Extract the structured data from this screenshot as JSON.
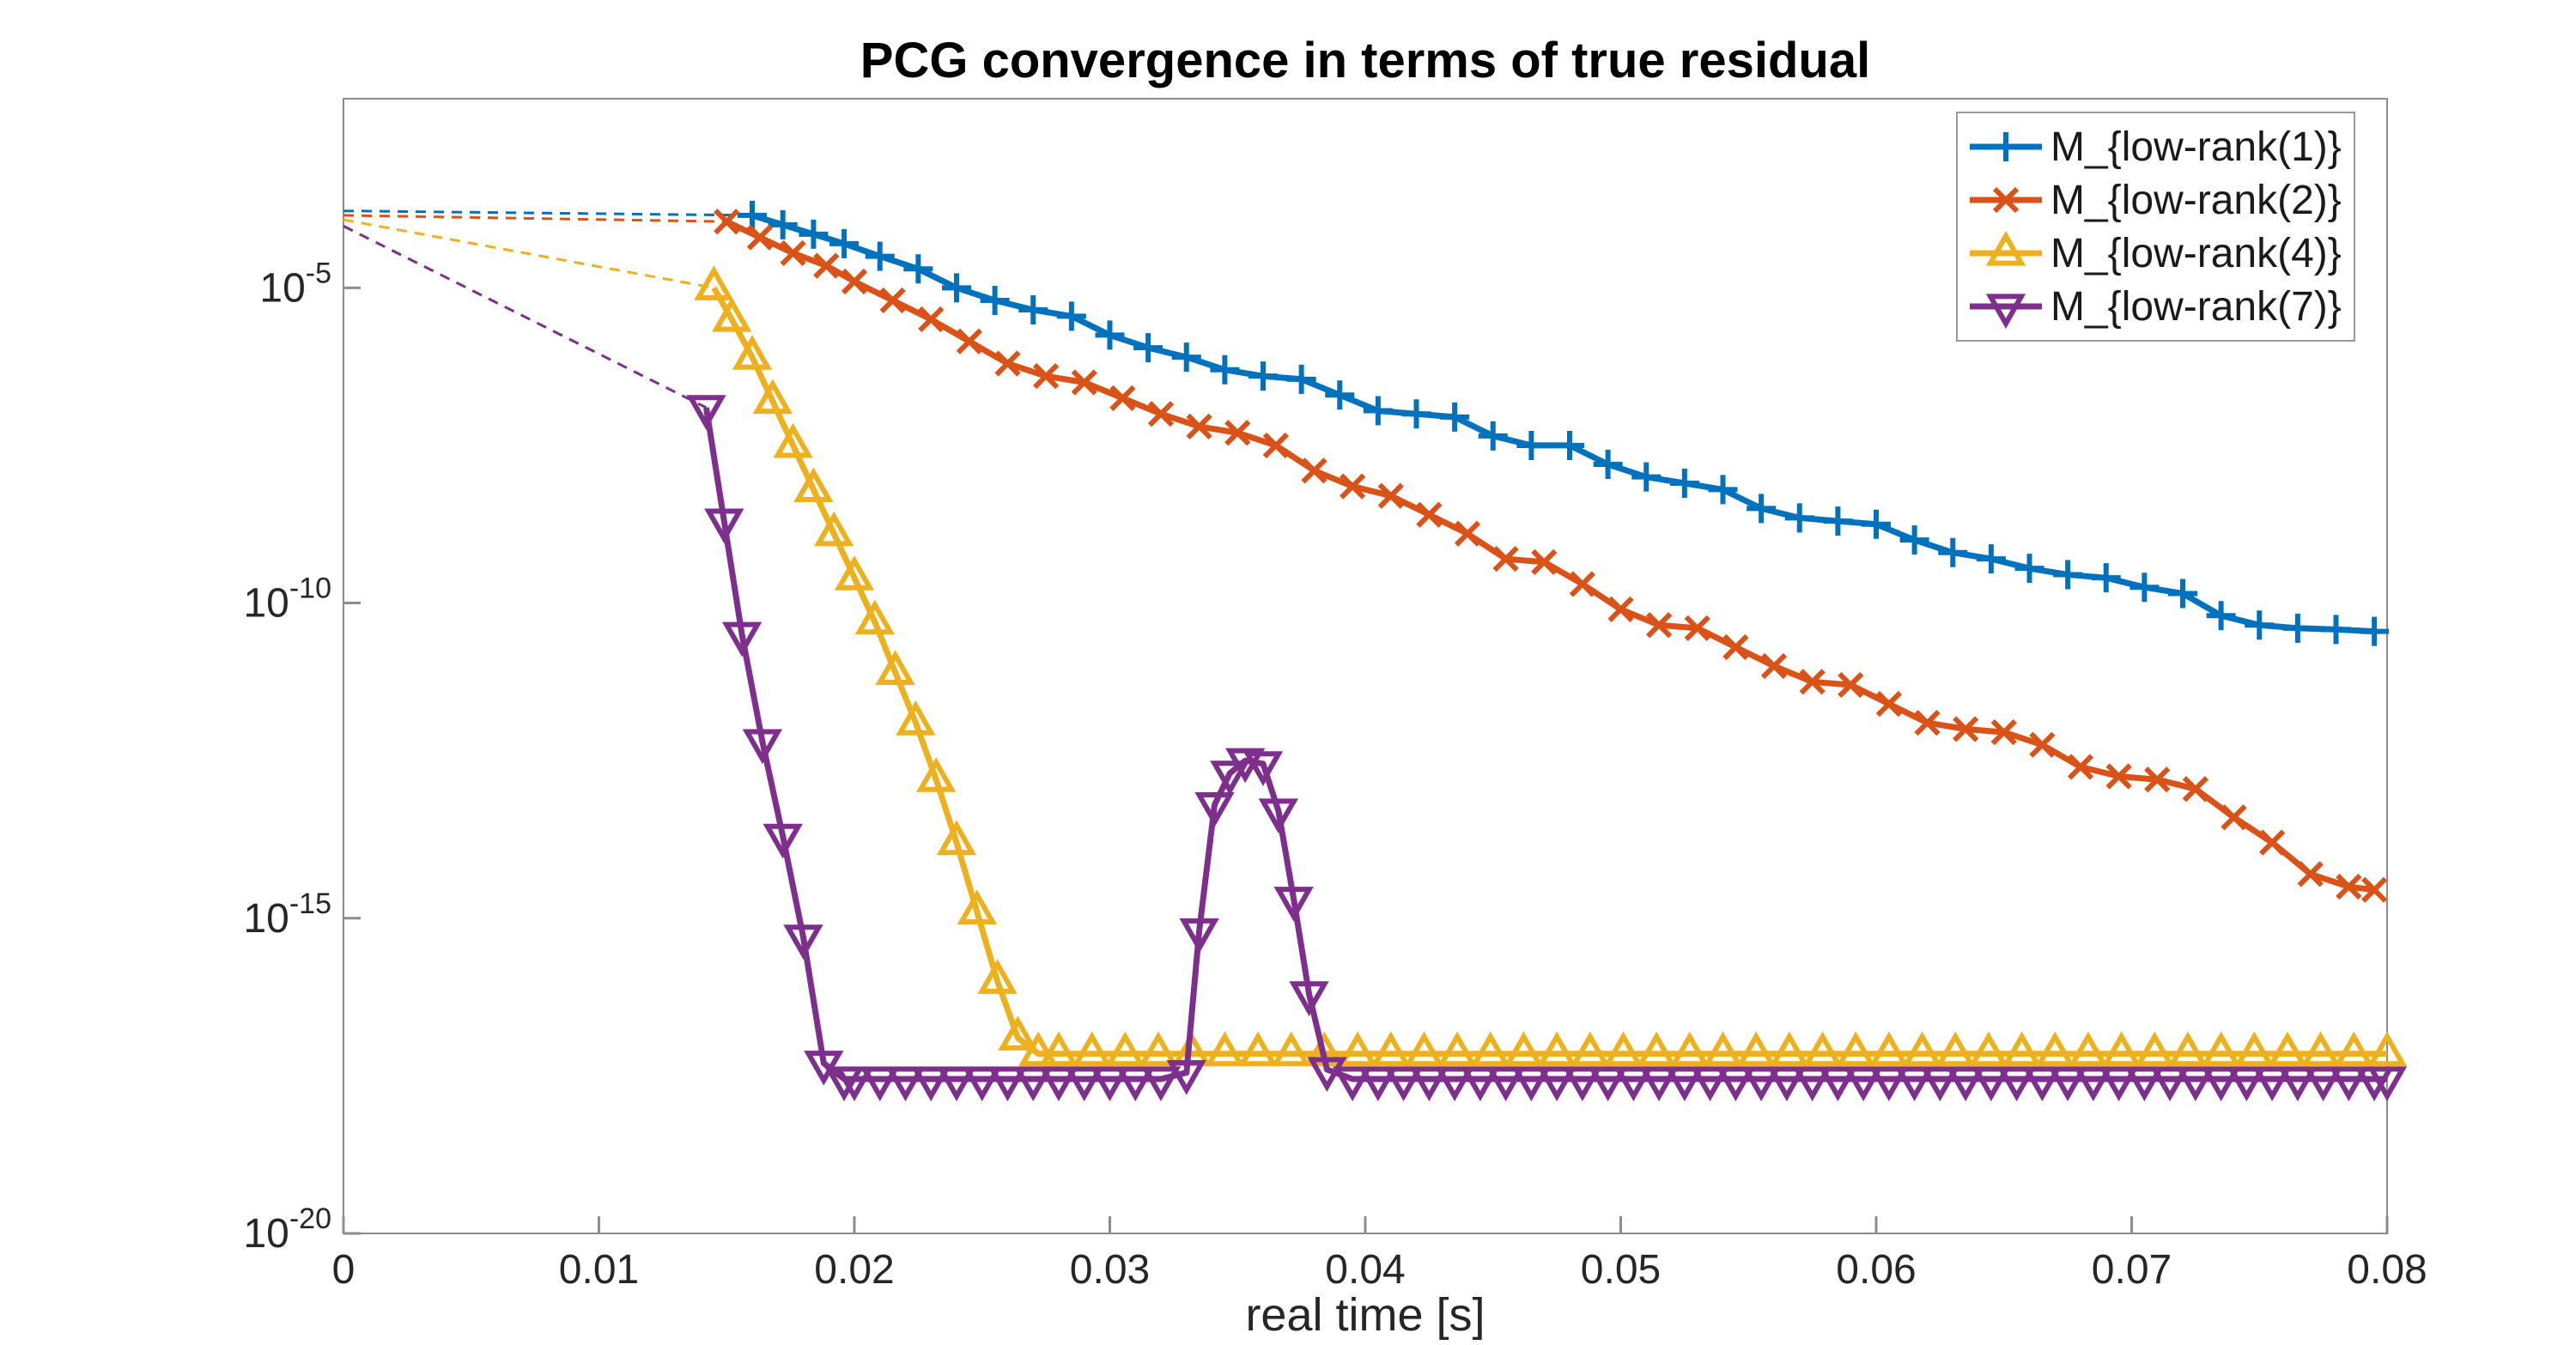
{
  "chart_data": {
    "type": "line",
    "title": "PCG convergence in terms of true residual",
    "xlabel": "real time [s]",
    "ylabel": "",
    "legend_position": "top-right",
    "grid": false,
    "x_axis": {
      "min": 0,
      "max": 0.08,
      "ticks": [
        {
          "v": 0,
          "label": "0"
        },
        {
          "v": 0.01,
          "label": "0.01"
        },
        {
          "v": 0.02,
          "label": "0.02"
        },
        {
          "v": 0.03,
          "label": "0.03"
        },
        {
          "v": 0.04,
          "label": "0.04"
        },
        {
          "v": 0.05,
          "label": "0.05"
        },
        {
          "v": 0.06,
          "label": "0.06"
        },
        {
          "v": 0.07,
          "label": "0.07"
        },
        {
          "v": 0.08,
          "label": "0.08"
        }
      ]
    },
    "y_axis": {
      "scale": "log10",
      "top_exp": -2,
      "bottom_exp": -20,
      "tick_exponents": [
        -5,
        -10,
        -15,
        -20
      ],
      "tick_label_base": "10"
    },
    "series": [
      {
        "name": "M_{low-rank(1)}",
        "color": "#0072BD",
        "marker": "plus",
        "dashed_lead": [
          [
            0,
            -3.78
          ],
          [
            0.016,
            -3.85
          ]
        ],
        "points": [
          [
            0.016,
            -3.85
          ],
          [
            0.0172,
            -4.0
          ],
          [
            0.0184,
            -4.15
          ],
          [
            0.0196,
            -4.3
          ],
          [
            0.021,
            -4.5
          ],
          [
            0.0225,
            -4.7
          ],
          [
            0.024,
            -5.0
          ],
          [
            0.0255,
            -5.2
          ],
          [
            0.027,
            -5.35
          ],
          [
            0.0285,
            -5.45
          ],
          [
            0.03,
            -5.75
          ],
          [
            0.0315,
            -5.95
          ],
          [
            0.033,
            -6.1
          ],
          [
            0.0345,
            -6.3
          ],
          [
            0.036,
            -6.4
          ],
          [
            0.0375,
            -6.45
          ],
          [
            0.039,
            -6.7
          ],
          [
            0.0405,
            -6.95
          ],
          [
            0.042,
            -7.0
          ],
          [
            0.0435,
            -7.05
          ],
          [
            0.045,
            -7.35
          ],
          [
            0.0465,
            -7.5
          ],
          [
            0.048,
            -7.5
          ],
          [
            0.0495,
            -7.8
          ],
          [
            0.051,
            -8.0
          ],
          [
            0.0525,
            -8.1
          ],
          [
            0.054,
            -8.2
          ],
          [
            0.0555,
            -8.5
          ],
          [
            0.057,
            -8.65
          ],
          [
            0.0585,
            -8.7
          ],
          [
            0.06,
            -8.75
          ],
          [
            0.0615,
            -9.0
          ],
          [
            0.063,
            -9.2
          ],
          [
            0.0645,
            -9.3
          ],
          [
            0.066,
            -9.45
          ],
          [
            0.0675,
            -9.55
          ],
          [
            0.069,
            -9.6
          ],
          [
            0.0705,
            -9.75
          ],
          [
            0.072,
            -9.85
          ],
          [
            0.0735,
            -10.2
          ],
          [
            0.075,
            -10.35
          ],
          [
            0.0765,
            -10.4
          ],
          [
            0.078,
            -10.42
          ],
          [
            0.0795,
            -10.45
          ]
        ]
      },
      {
        "name": "M_{low-rank(2)}",
        "color": "#D95319",
        "marker": "x",
        "dashed_lead": [
          [
            0,
            -3.85
          ],
          [
            0.015,
            -3.95
          ]
        ],
        "points": [
          [
            0.015,
            -3.95
          ],
          [
            0.0163,
            -4.2
          ],
          [
            0.0176,
            -4.45
          ],
          [
            0.0189,
            -4.65
          ],
          [
            0.02,
            -4.9
          ],
          [
            0.0215,
            -5.2
          ],
          [
            0.023,
            -5.5
          ],
          [
            0.0245,
            -5.85
          ],
          [
            0.026,
            -6.2
          ],
          [
            0.0275,
            -6.4
          ],
          [
            0.029,
            -6.5
          ],
          [
            0.0305,
            -6.75
          ],
          [
            0.032,
            -7.0
          ],
          [
            0.0335,
            -7.2
          ],
          [
            0.035,
            -7.3
          ],
          [
            0.0365,
            -7.5
          ],
          [
            0.038,
            -7.9
          ],
          [
            0.0395,
            -8.15
          ],
          [
            0.041,
            -8.3
          ],
          [
            0.0425,
            -8.6
          ],
          [
            0.044,
            -8.9
          ],
          [
            0.0455,
            -9.3
          ],
          [
            0.047,
            -9.35
          ],
          [
            0.0485,
            -9.7
          ],
          [
            0.05,
            -10.1
          ],
          [
            0.0515,
            -10.35
          ],
          [
            0.053,
            -10.4
          ],
          [
            0.0545,
            -10.7
          ],
          [
            0.056,
            -11.0
          ],
          [
            0.0575,
            -11.25
          ],
          [
            0.059,
            -11.3
          ],
          [
            0.0605,
            -11.6
          ],
          [
            0.062,
            -11.9
          ],
          [
            0.0635,
            -12.0
          ],
          [
            0.065,
            -12.05
          ],
          [
            0.0665,
            -12.25
          ],
          [
            0.068,
            -12.6
          ],
          [
            0.0695,
            -12.75
          ],
          [
            0.071,
            -12.8
          ],
          [
            0.0725,
            -12.95
          ],
          [
            0.074,
            -13.4
          ],
          [
            0.0755,
            -13.8
          ],
          [
            0.077,
            -14.3
          ],
          [
            0.0785,
            -14.5
          ],
          [
            0.0795,
            -14.55
          ]
        ]
      },
      {
        "name": "M_{low-rank(4)}",
        "color": "#EDB120",
        "marker": "triangle-up",
        "dashed_lead": [
          [
            0,
            -3.92
          ],
          [
            0.0145,
            -5.0
          ]
        ],
        "points": [
          [
            0.0145,
            -5.0
          ],
          [
            0.0152,
            -5.5
          ],
          [
            0.016,
            -6.1
          ],
          [
            0.0168,
            -6.8
          ],
          [
            0.0176,
            -7.5
          ],
          [
            0.0184,
            -8.2
          ],
          [
            0.0192,
            -8.9
          ],
          [
            0.02,
            -9.6
          ],
          [
            0.0208,
            -10.3
          ],
          [
            0.0216,
            -11.1
          ],
          [
            0.0224,
            -11.9
          ],
          [
            0.0232,
            -12.8
          ],
          [
            0.024,
            -13.8
          ],
          [
            0.0248,
            -14.9
          ],
          [
            0.0256,
            -16.0
          ],
          [
            0.0264,
            -16.9
          ],
          [
            0.0272,
            -17.15
          ],
          [
            0.028,
            -17.15
          ],
          [
            0.0293,
            -17.15
          ],
          [
            0.0306,
            -17.15
          ],
          [
            0.0319,
            -17.15
          ],
          [
            0.0332,
            -17.15
          ],
          [
            0.0345,
            -17.15
          ],
          [
            0.0358,
            -17.15
          ],
          [
            0.0371,
            -17.15
          ],
          [
            0.0384,
            -17.15
          ],
          [
            0.0397,
            -17.15
          ],
          [
            0.041,
            -17.15
          ],
          [
            0.0423,
            -17.15
          ],
          [
            0.0436,
            -17.15
          ],
          [
            0.0449,
            -17.15
          ],
          [
            0.0462,
            -17.15
          ],
          [
            0.0475,
            -17.15
          ],
          [
            0.0488,
            -17.15
          ],
          [
            0.0501,
            -17.15
          ],
          [
            0.0514,
            -17.15
          ],
          [
            0.0527,
            -17.15
          ],
          [
            0.054,
            -17.15
          ],
          [
            0.0553,
            -17.15
          ],
          [
            0.0566,
            -17.15
          ],
          [
            0.0579,
            -17.15
          ],
          [
            0.0592,
            -17.15
          ],
          [
            0.0605,
            -17.15
          ],
          [
            0.0618,
            -17.15
          ],
          [
            0.0631,
            -17.15
          ],
          [
            0.0644,
            -17.15
          ],
          [
            0.0657,
            -17.15
          ],
          [
            0.067,
            -17.15
          ],
          [
            0.0683,
            -17.15
          ],
          [
            0.0696,
            -17.15
          ],
          [
            0.0709,
            -17.15
          ],
          [
            0.0722,
            -17.15
          ],
          [
            0.0735,
            -17.15
          ],
          [
            0.0748,
            -17.15
          ],
          [
            0.0761,
            -17.15
          ],
          [
            0.0774,
            -17.15
          ],
          [
            0.0787,
            -17.15
          ],
          [
            0.08,
            -17.15
          ]
        ]
      },
      {
        "name": "M_{low-rank(7)}",
        "color": "#7E2F8E",
        "marker": "triangle-down",
        "dashed_lead": [
          [
            0,
            -4.02
          ],
          [
            0.0142,
            -6.9
          ]
        ],
        "points": [
          [
            0.0142,
            -6.9
          ],
          [
            0.0149,
            -8.7
          ],
          [
            0.0156,
            -10.5
          ],
          [
            0.0164,
            -12.2
          ],
          [
            0.0172,
            -13.7
          ],
          [
            0.018,
            -15.3
          ],
          [
            0.0188,
            -17.3
          ],
          [
            0.0196,
            -17.55
          ],
          [
            0.02,
            -17.55
          ],
          [
            0.021,
            -17.55
          ],
          [
            0.022,
            -17.55
          ],
          [
            0.023,
            -17.55
          ],
          [
            0.024,
            -17.55
          ],
          [
            0.025,
            -17.55
          ],
          [
            0.026,
            -17.55
          ],
          [
            0.027,
            -17.55
          ],
          [
            0.028,
            -17.55
          ],
          [
            0.029,
            -17.55
          ],
          [
            0.03,
            -17.55
          ],
          [
            0.031,
            -17.55
          ],
          [
            0.032,
            -17.55
          ],
          [
            0.033,
            -17.45
          ],
          [
            0.0335,
            -15.2
          ],
          [
            0.0341,
            -13.2
          ],
          [
            0.0347,
            -12.7
          ],
          [
            0.0353,
            -12.5
          ],
          [
            0.036,
            -12.55
          ],
          [
            0.0366,
            -13.3
          ],
          [
            0.0372,
            -14.7
          ],
          [
            0.0378,
            -16.2
          ],
          [
            0.0385,
            -17.4
          ],
          [
            0.0395,
            -17.55
          ],
          [
            0.0405,
            -17.55
          ],
          [
            0.0415,
            -17.55
          ],
          [
            0.0425,
            -17.55
          ],
          [
            0.0435,
            -17.55
          ],
          [
            0.0445,
            -17.55
          ],
          [
            0.0455,
            -17.55
          ],
          [
            0.0465,
            -17.55
          ],
          [
            0.0475,
            -17.55
          ],
          [
            0.0485,
            -17.55
          ],
          [
            0.0495,
            -17.55
          ],
          [
            0.0505,
            -17.55
          ],
          [
            0.0515,
            -17.55
          ],
          [
            0.0525,
            -17.55
          ],
          [
            0.0535,
            -17.55
          ],
          [
            0.0545,
            -17.55
          ],
          [
            0.0555,
            -17.55
          ],
          [
            0.0565,
            -17.55
          ],
          [
            0.0575,
            -17.55
          ],
          [
            0.0585,
            -17.55
          ],
          [
            0.0595,
            -17.55
          ],
          [
            0.0605,
            -17.55
          ],
          [
            0.0615,
            -17.55
          ],
          [
            0.0625,
            -17.55
          ],
          [
            0.0635,
            -17.55
          ],
          [
            0.0645,
            -17.55
          ],
          [
            0.0655,
            -17.55
          ],
          [
            0.0665,
            -17.55
          ],
          [
            0.0675,
            -17.55
          ],
          [
            0.0685,
            -17.55
          ],
          [
            0.0695,
            -17.55
          ],
          [
            0.0705,
            -17.55
          ],
          [
            0.0715,
            -17.55
          ],
          [
            0.0725,
            -17.55
          ],
          [
            0.0735,
            -17.55
          ],
          [
            0.0745,
            -17.55
          ],
          [
            0.0755,
            -17.55
          ],
          [
            0.0765,
            -17.55
          ],
          [
            0.0775,
            -17.55
          ],
          [
            0.0785,
            -17.55
          ],
          [
            0.0795,
            -17.55
          ],
          [
            0.08,
            -17.55
          ]
        ]
      }
    ]
  }
}
